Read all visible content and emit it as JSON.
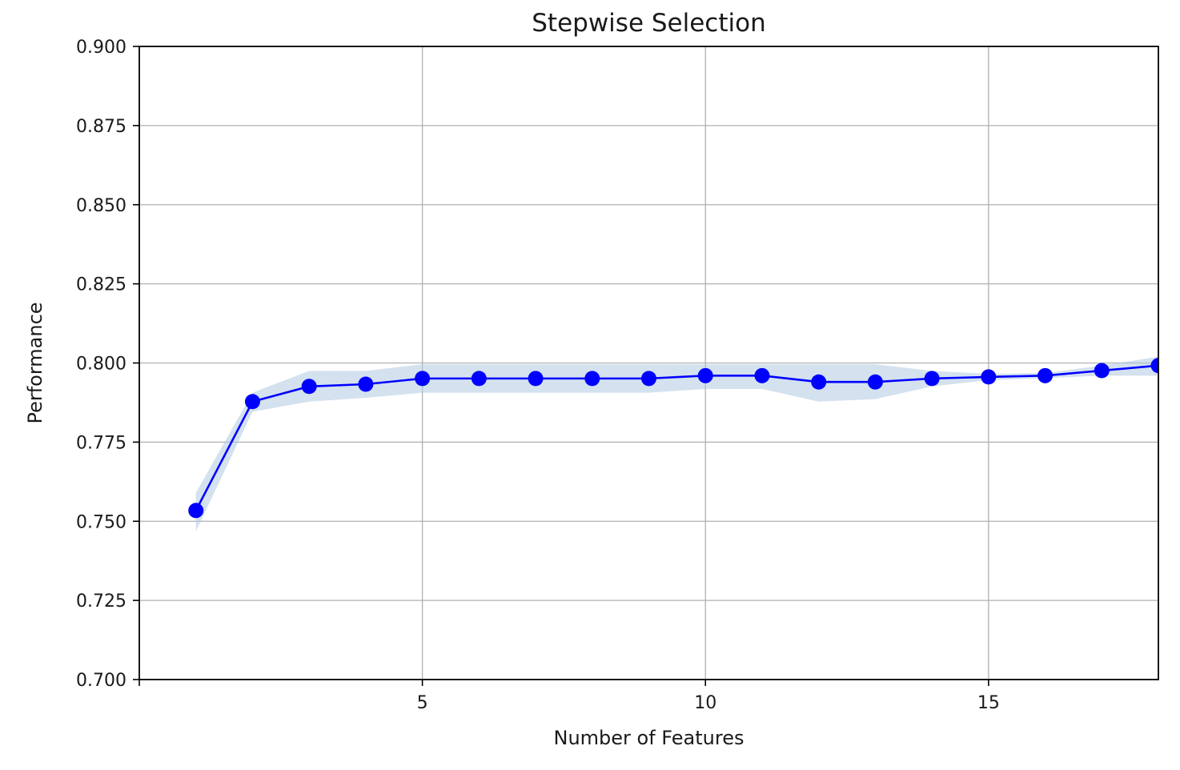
{
  "chart_data": {
    "type": "line",
    "title": "Stepwise Selection",
    "xlabel": "Number of Features",
    "ylabel": "Performance",
    "xlim": [
      0,
      18
    ],
    "ylim": [
      0.7,
      0.9
    ],
    "xticks": [
      5,
      10,
      15
    ],
    "xtick_labels": [
      "5",
      "10",
      "15"
    ],
    "yticks": [
      0.7,
      0.725,
      0.75,
      0.775,
      0.8,
      0.825,
      0.85,
      0.875,
      0.9
    ],
    "ytick_labels": [
      "0.700",
      "0.725",
      "0.750",
      "0.775",
      "0.800",
      "0.825",
      "0.850",
      "0.875",
      "0.900"
    ],
    "grid": true,
    "legend": "none",
    "series": [
      {
        "line_color": "#0000ff",
        "band_color": "#b0c8e2",
        "x": [
          1,
          2,
          3,
          4,
          5,
          6,
          7,
          8,
          9,
          10,
          11,
          12,
          13,
          14,
          15,
          16,
          17,
          18
        ],
        "y": [
          0.7534,
          0.7878,
          0.7926,
          0.7933,
          0.7951,
          0.7951,
          0.7951,
          0.7951,
          0.7951,
          0.796,
          0.796,
          0.794,
          0.794,
          0.7951,
          0.7956,
          0.796,
          0.7976,
          0.7992
        ],
        "lower": [
          0.7468,
          0.7846,
          0.7878,
          0.789,
          0.7906,
          0.7906,
          0.7906,
          0.7906,
          0.7906,
          0.7918,
          0.7918,
          0.7878,
          0.7886,
          0.7926,
          0.7946,
          0.7952,
          0.796,
          0.796
        ],
        "upper": [
          0.759,
          0.7906,
          0.7975,
          0.7975,
          0.7996,
          0.7996,
          0.7996,
          0.7996,
          0.7996,
          0.7996,
          0.7996,
          0.7996,
          0.7996,
          0.7975,
          0.7966,
          0.7968,
          0.7992,
          0.802
        ]
      }
    ]
  }
}
